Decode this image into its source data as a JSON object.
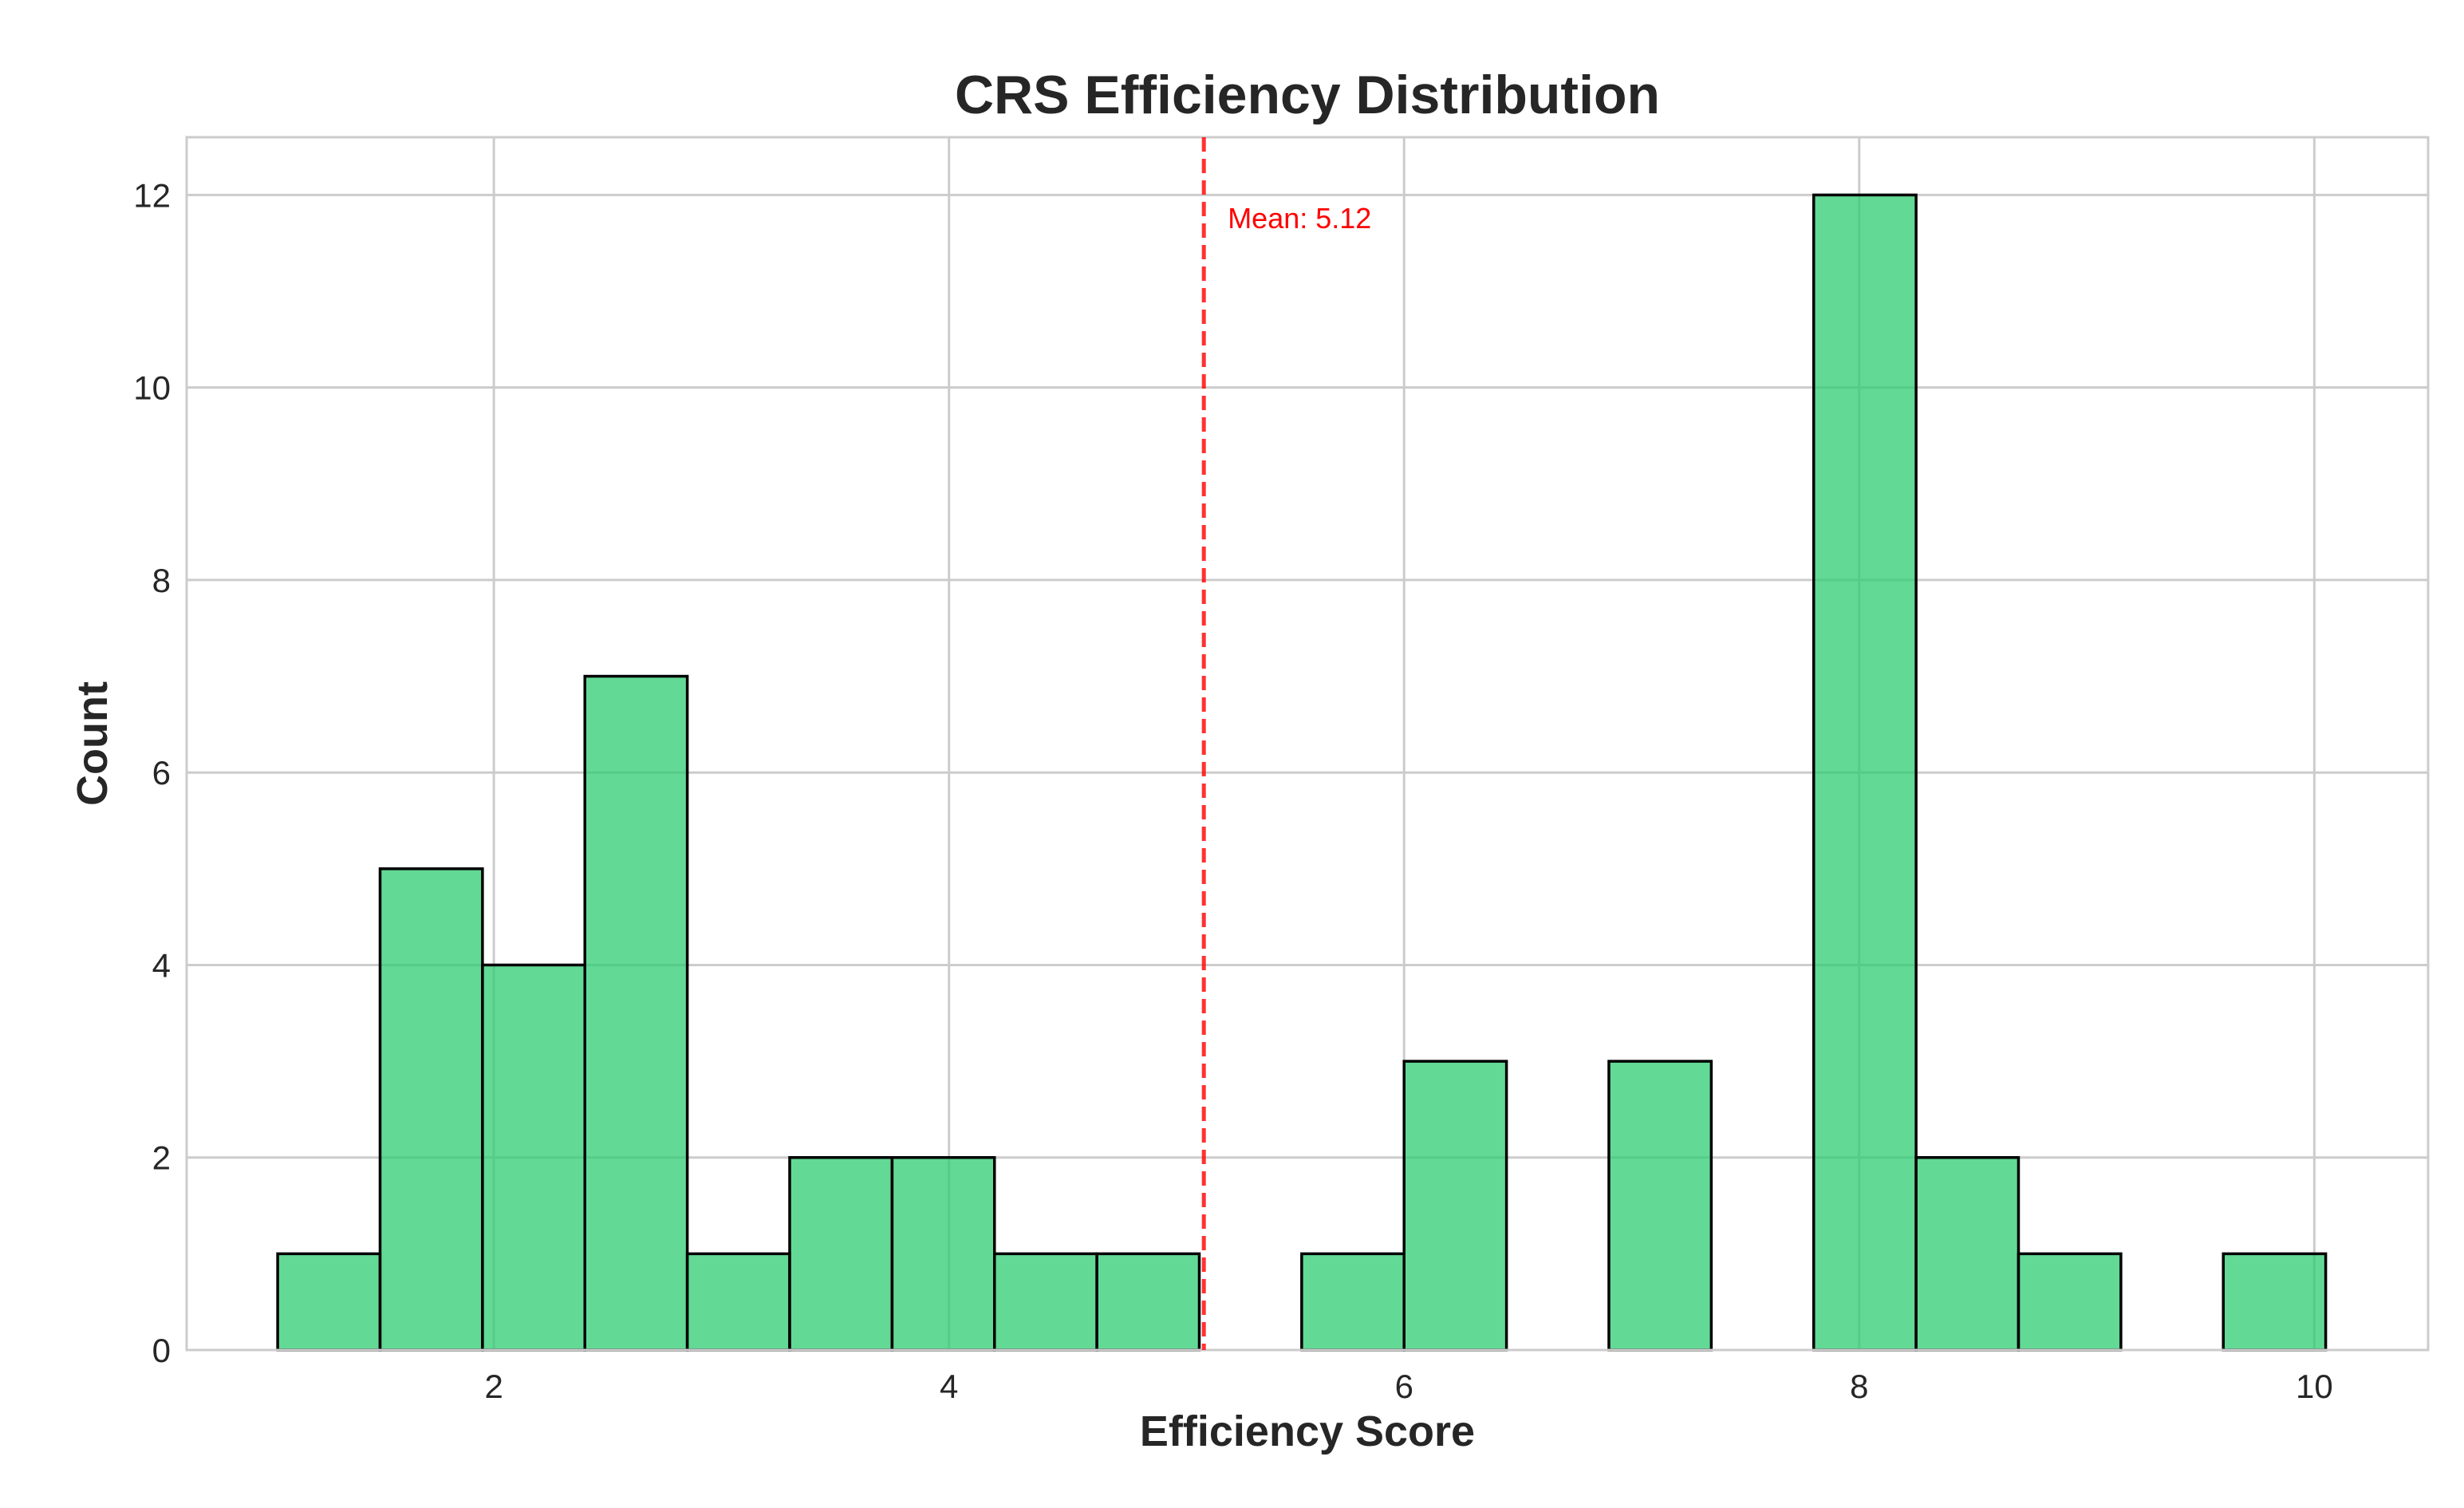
{
  "chart_data": {
    "type": "bar",
    "subtype": "histogram",
    "title": "CRS Efficiency Distribution",
    "xlabel": "Efficiency Score",
    "ylabel": "Count",
    "xlim": [
      0.65,
      10.5
    ],
    "ylim": [
      0,
      12.6
    ],
    "xticks": [
      2,
      4,
      6,
      8,
      10
    ],
    "yticks": [
      0,
      2,
      4,
      6,
      8,
      10,
      12
    ],
    "grid": true,
    "bin_edges": [
      1.05,
      1.5,
      1.95,
      2.4,
      2.85,
      3.3,
      3.75,
      4.2,
      4.65,
      5.1,
      5.55,
      6.0,
      6.45,
      6.9,
      7.35,
      7.8,
      8.25,
      8.7,
      9.15,
      9.6,
      10.05
    ],
    "counts": [
      1,
      5,
      4,
      7,
      1,
      2,
      2,
      1,
      1,
      0,
      1,
      3,
      0,
      3,
      0,
      12,
      2,
      1,
      0,
      1
    ],
    "bar_color": "#2ecc71",
    "bar_edge_color": "#000000",
    "mean_line": {
      "value": 5.12,
      "label": "Mean: 5.12",
      "color": "#ff0000",
      "style": "dashed"
    }
  }
}
